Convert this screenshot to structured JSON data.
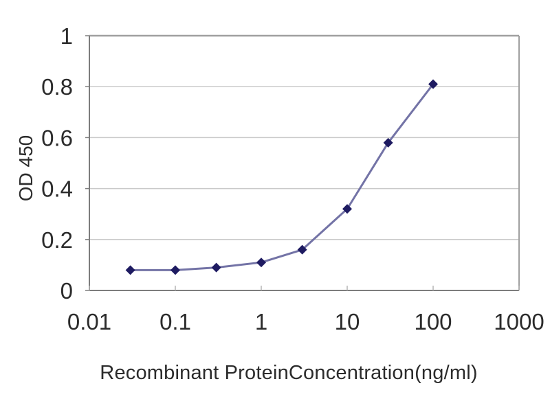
{
  "chart_data": {
    "type": "line",
    "title": "",
    "xlabel": "Recombinant ProteinConcentration(ng/ml)",
    "ylabel": "OD 450",
    "x_scale": "log",
    "xlim": [
      0.01,
      1000
    ],
    "ylim": [
      0,
      1
    ],
    "x_tick_values": [
      0.01,
      0.1,
      1,
      10,
      100,
      1000
    ],
    "x_tick_labels": [
      "0.01",
      "0.1",
      "1",
      "10",
      "100",
      "1000"
    ],
    "y_tick_values": [
      0,
      0.2,
      0.4,
      0.6,
      0.8,
      1
    ],
    "y_tick_labels": [
      "0",
      "0.2",
      "0.4",
      "0.6",
      "0.8",
      "1"
    ],
    "grid": "horizontal",
    "legend": "none",
    "series": [
      {
        "marker": "diamond",
        "x": [
          0.03,
          0.1,
          0.3,
          1,
          3,
          10,
          30,
          100
        ],
        "y": [
          0.08,
          0.08,
          0.09,
          0.11,
          0.16,
          0.32,
          0.58,
          0.81
        ]
      }
    ],
    "colors": {
      "line": "#7373a6",
      "marker": "#1e1b61",
      "grid": "#c9c9c9",
      "axis": "#7d7d7d",
      "border": "#a0a0a0",
      "minor_tick": "#b4b4b4",
      "text": "#2b2b2b"
    }
  }
}
